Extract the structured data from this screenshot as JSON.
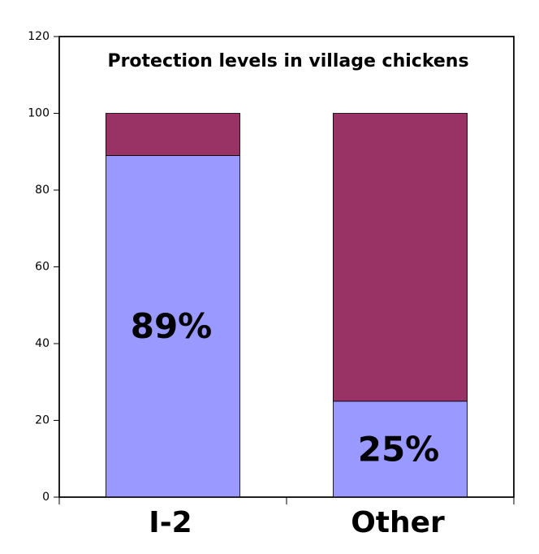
{
  "chart_data": {
    "type": "stacked-bar",
    "title": "Protection levels in village chickens",
    "categories": [
      "I-2",
      "Other"
    ],
    "series": [
      {
        "color": "#9999ff",
        "values": [
          89,
          25
        ],
        "value_labels": [
          "89%",
          "25%"
        ]
      },
      {
        "color": "#993366",
        "values": [
          11,
          75
        ]
      }
    ],
    "ylim": [
      0,
      120
    ],
    "yticks": [
      0,
      20,
      40,
      60,
      80,
      100,
      120
    ]
  }
}
